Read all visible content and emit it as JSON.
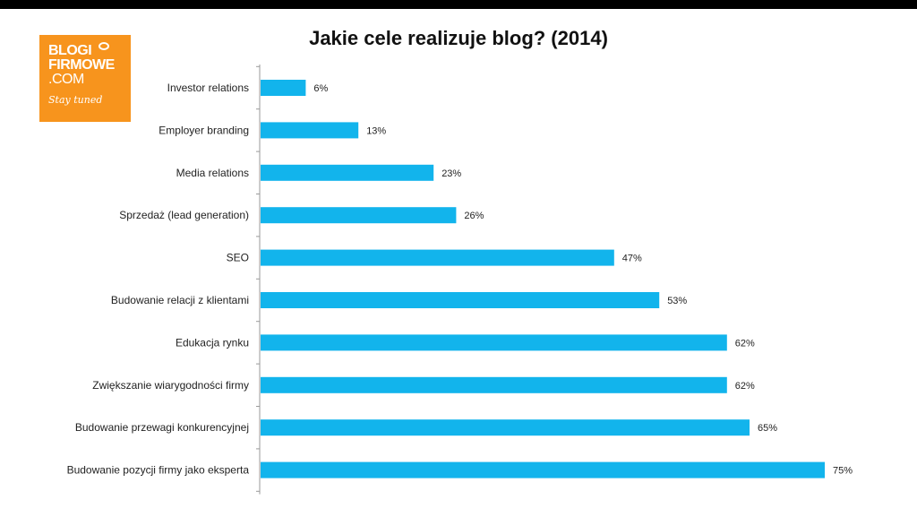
{
  "header": {
    "title": "Jakie cele realizuje blog? (2014)"
  },
  "logo": {
    "line1": "BLOGI",
    "line2": "FIRMOWE",
    "line3": ".COM",
    "tagline": "Stay tuned",
    "bg_color": "#f7941d"
  },
  "chart_data": {
    "type": "bar",
    "orientation": "horizontal",
    "title": "Jakie cele realizuje blog? (2014)",
    "categories": [
      "Investor relations",
      "Employer branding",
      "Media relations",
      "Sprzedaż (lead generation)",
      "SEO",
      "Budowanie relacji z klientami",
      "Edukacja rynku",
      "Zwiększanie wiarygodności firmy",
      "Budowanie przewagi konkurencyjnej",
      "Budowanie pozycji firmy jako eksperta"
    ],
    "values": [
      6,
      13,
      23,
      26,
      47,
      53,
      62,
      62,
      65,
      75
    ],
    "data_labels": [
      "6%",
      "13%",
      "23%",
      "26%",
      "47%",
      "53%",
      "62%",
      "62%",
      "65%",
      "75%"
    ],
    "unit": "%",
    "xlim": [
      0,
      80
    ],
    "grid": false,
    "legend": "none",
    "bar_color": "#12b4ec"
  }
}
